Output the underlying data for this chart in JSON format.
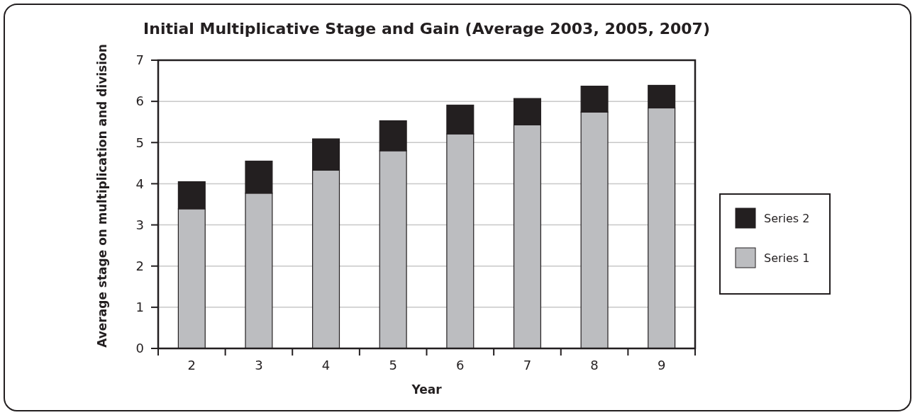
{
  "chart_data": {
    "type": "bar",
    "title": "Initial Multiplicative Stage and Gain (Average 2003, 2005, 2007)",
    "xlabel": "Year",
    "ylabel": "Average stage on multiplication and division",
    "categories": [
      "2",
      "3",
      "4",
      "5",
      "6",
      "7",
      "8",
      "9"
    ],
    "series": [
      {
        "name": "Series 1",
        "color": "#bcbdc0",
        "values": [
          3.39,
          3.77,
          4.33,
          4.8,
          5.21,
          5.43,
          5.74,
          5.84
        ]
      },
      {
        "name": "Series 2",
        "color": "#231f20",
        "values": [
          0.66,
          0.78,
          0.76,
          0.73,
          0.7,
          0.64,
          0.63,
          0.55
        ]
      }
    ],
    "stacked": true,
    "ylim": [
      0,
      7
    ],
    "yticks": [
      0,
      1,
      2,
      3,
      4,
      5,
      6,
      7
    ],
    "grid": "y",
    "legend": "right"
  }
}
